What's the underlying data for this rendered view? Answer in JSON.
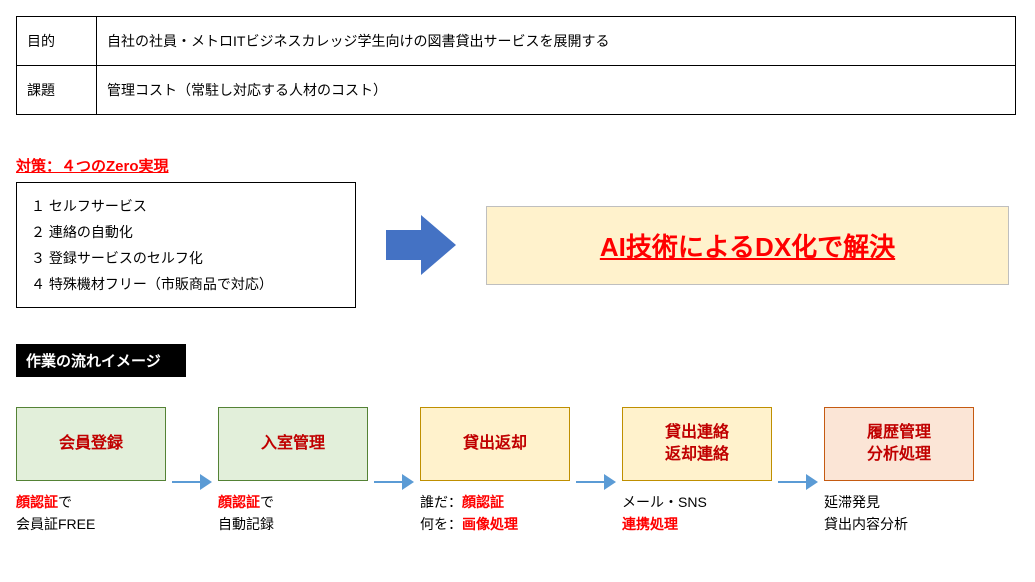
{
  "table": {
    "row1_label": "目的",
    "row1_value": "自社の社員・メトロITビジネスカレッジ学生向けの図書貸出サービスを展開する",
    "row2_label": "課題",
    "row2_value": "管理コスト（常駐し対応する人材のコスト）"
  },
  "zero": {
    "title": "対策：４つのZero実現",
    "items": [
      "１ セルフサービス",
      "２ 連絡の自動化",
      "３ 登録サービスのセルフ化",
      "４ 特殊機材フリー（市販商品で対応）"
    ]
  },
  "arrow_color": "#4472c4",
  "callout": {
    "bg": "#fff2cc",
    "text": "AI技術によるDX化で解決"
  },
  "flow_heading": "作業の流れイメージ",
  "small_arrow_color": "#5b9bd5",
  "flow": [
    {
      "title_lines": [
        "会員登録"
      ],
      "bg": "#e2efda",
      "border": "#548235",
      "desc_html": "<span class='red'>顔認証</span>で<br>会員証FREE"
    },
    {
      "title_lines": [
        "入室管理"
      ],
      "bg": "#e2efda",
      "border": "#548235",
      "desc_html": "<span class='red'>顔認証</span>で<br>自動記録"
    },
    {
      "title_lines": [
        "貸出返却"
      ],
      "bg": "#fff2cc",
      "border": "#bf8f00",
      "desc_html": "誰だ：<span class='red'>顔認証</span><br>何を：<span class='red'>画像処理</span>"
    },
    {
      "title_lines": [
        "貸出連絡",
        "返却連絡"
      ],
      "bg": "#fff2cc",
      "border": "#bf8f00",
      "desc_html": "メール・SNS<br><span class='red'>連携処理</span>"
    },
    {
      "title_lines": [
        "履歴管理",
        "分析処理"
      ],
      "bg": "#fbe5d6",
      "border": "#c55a11",
      "desc_html": "延滞発見<br>貸出内容分析"
    }
  ]
}
